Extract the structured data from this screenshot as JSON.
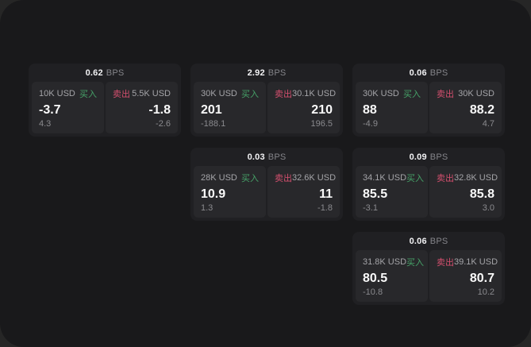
{
  "labels": {
    "buy": "买入",
    "sell": "卖出",
    "bps_unit": "BPS"
  },
  "colors": {
    "page_bg": "#262626",
    "window_bg": "#19191b",
    "card_bg": "#202023",
    "panel_bg": "#28282b",
    "buy_green": "#46a268",
    "sell_red": "#d44f6e",
    "price_text": "#fafafa",
    "muted_text": "#8a8a8e"
  },
  "cards": [
    {
      "grid": {
        "col": 0,
        "row": 0
      },
      "bps": "0.62",
      "buy": {
        "notional": "10K USD",
        "price": "-3.7",
        "delta": "4.3"
      },
      "sell": {
        "notional": "5.5K USD",
        "price": "-1.8",
        "delta": "-2.6"
      }
    },
    {
      "grid": {
        "col": 1,
        "row": 0
      },
      "bps": "2.92",
      "buy": {
        "notional": "30K USD",
        "price": "201",
        "delta": "-188.1"
      },
      "sell": {
        "notional": "30.1K USD",
        "price": "210",
        "delta": "196.5"
      }
    },
    {
      "grid": {
        "col": 2,
        "row": 0
      },
      "bps": "0.06",
      "buy": {
        "notional": "30K USD",
        "price": "88",
        "delta": "-4.9"
      },
      "sell": {
        "notional": "30K USD",
        "price": "88.2",
        "delta": "4.7"
      }
    },
    {
      "grid": {
        "col": 1,
        "row": 1
      },
      "bps": "0.03",
      "buy": {
        "notional": "28K USD",
        "price": "10.9",
        "delta": "1.3"
      },
      "sell": {
        "notional": "32.6K USD",
        "price": "11",
        "delta": "-1.8"
      }
    },
    {
      "grid": {
        "col": 2,
        "row": 1
      },
      "bps": "0.09",
      "buy": {
        "notional": "34.1K USD",
        "price": "85.5",
        "delta": "-3.1"
      },
      "sell": {
        "notional": "32.8K USD",
        "price": "85.8",
        "delta": "3.0"
      }
    },
    {
      "grid": {
        "col": 2,
        "row": 2
      },
      "bps": "0.06",
      "buy": {
        "notional": "31.8K USD",
        "price": "80.5",
        "delta": "-10.8"
      },
      "sell": {
        "notional": "39.1K USD",
        "price": "80.7",
        "delta": "10.2"
      }
    }
  ]
}
